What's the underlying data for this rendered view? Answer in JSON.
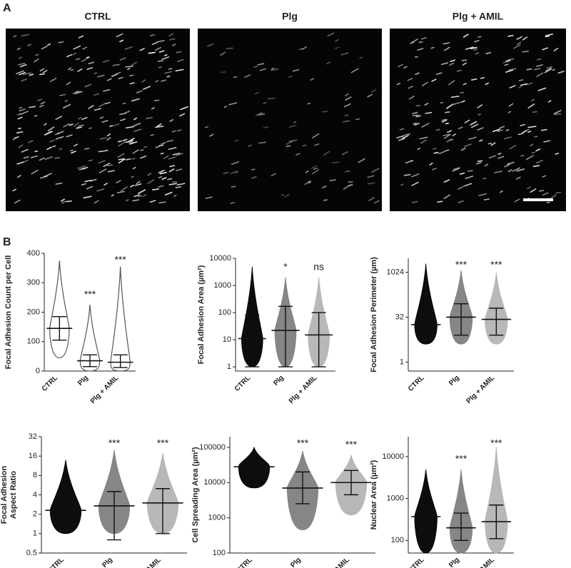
{
  "panel_a": {
    "label": "A",
    "images": [
      {
        "title": "CTRL"
      },
      {
        "title": "Plg"
      },
      {
        "title": "Plg + AMIL"
      }
    ]
  },
  "panel_b": {
    "label": "B",
    "charts": [
      {
        "type": "dot",
        "y_label": [
          "Focal Adhesion Count per Cell"
        ],
        "categories": [
          "CTRL",
          "Plg",
          "Plg + AMIL"
        ],
        "log": false,
        "ylim": [
          0,
          400
        ],
        "yticks": [
          0,
          100,
          200,
          300,
          400
        ],
        "groups": [
          {
            "color": "#555555",
            "mean": 145,
            "err": [
              105,
              185
            ],
            "range": [
              45,
              375
            ],
            "significance": null
          },
          {
            "color": "#555555",
            "mean": 35,
            "err": [
              15,
              55
            ],
            "range": [
              0,
              225
            ],
            "significance": "***"
          },
          {
            "color": "#555555",
            "mean": 30,
            "err": [
              12,
              55
            ],
            "range": [
              0,
              355
            ],
            "significance": "***"
          }
        ]
      },
      {
        "type": "dot",
        "y_label": [
          "Focal Adhesion Area (µm²)"
        ],
        "categories": [
          "CTRL",
          "Plg",
          "Plg + AMIL"
        ],
        "log": true,
        "ylim": [
          0.7,
          10000
        ],
        "yticks": [
          1,
          10,
          100,
          1000,
          10000
        ],
        "groups": [
          {
            "color": "#000000",
            "mean": 11,
            "err": [
              1,
              80
            ],
            "range": [
              1,
              5000
            ],
            "significance": null
          },
          {
            "color": "#808080",
            "mean": 22,
            "err": [
              1,
              170
            ],
            "range": [
              1,
              2000
            ],
            "significance": "*"
          },
          {
            "color": "#b4b4b4",
            "mean": 15,
            "err": [
              1,
              100
            ],
            "range": [
              1,
              2000
            ],
            "significance": "ns"
          }
        ]
      },
      {
        "type": "dot",
        "y_label": [
          "Focal Adhesion Perimeter (µm)"
        ],
        "categories": [
          "CTRL",
          "Plg",
          "Plg + AMIL"
        ],
        "log": true,
        "ylim": [
          0.5,
          3000
        ],
        "yticks": [
          1,
          32,
          1024
        ],
        "groups": [
          {
            "color": "#000000",
            "mean": 18,
            "err": [
              6,
              40
            ],
            "range": [
              4,
              2000
            ],
            "significance": null
          },
          {
            "color": "#808080",
            "mean": 32,
            "err": [
              8,
              90
            ],
            "range": [
              4,
              1200
            ],
            "significance": "***"
          },
          {
            "color": "#b4b4b4",
            "mean": 27,
            "err": [
              8,
              64
            ],
            "range": [
              4,
              1000
            ],
            "significance": "***"
          }
        ]
      },
      {
        "type": "dot",
        "y_label": [
          "Focal Adhesion",
          "Aspect Ratio"
        ],
        "categories": [
          "CTRL",
          "Plg",
          "Plg + AMIL"
        ],
        "log": true,
        "ylim": [
          0.5,
          32
        ],
        "yticks": [
          0.5,
          1,
          2,
          4,
          8,
          16,
          32
        ],
        "groups": [
          {
            "color": "#000000",
            "mean": 2.3,
            "err": [
              1.1,
              2.3
            ],
            "range": [
              1,
              14
            ],
            "significance": null
          },
          {
            "color": "#808080",
            "mean": 2.7,
            "err": [
              0.8,
              4.5
            ],
            "range": [
              1,
              20
            ],
            "significance": "***"
          },
          {
            "color": "#b4b4b4",
            "mean": 3,
            "err": [
              1,
              5
            ],
            "range": [
              1,
              18
            ],
            "significance": "***"
          }
        ]
      },
      {
        "type": "dot",
        "y_label": [
          "Cell Spreading Area  (µm²)"
        ],
        "categories": [
          "CTRL",
          "Plg",
          "Plg + AMIL"
        ],
        "log": true,
        "ylim": [
          100,
          200000
        ],
        "yticks": [
          100,
          1000,
          10000,
          100000
        ],
        "groups": [
          {
            "color": "#000000",
            "mean": 28000,
            "err": [
              18000,
              40000
            ],
            "range": [
              7000,
              100000
            ],
            "significance": null
          },
          {
            "color": "#808080",
            "mean": 7000,
            "err": [
              2500,
              20000
            ],
            "range": [
              450,
              80000
            ],
            "significance": "***"
          },
          {
            "color": "#b4b4b4",
            "mean": 10000,
            "err": [
              4500,
              22000
            ],
            "range": [
              1200,
              60000
            ],
            "significance": "***"
          }
        ]
      },
      {
        "type": "dot",
        "y_label": [
          "Nuclear Area (µm²)"
        ],
        "categories": [
          "CTRL",
          "Plg",
          "Plg + AMIL"
        ],
        "log": true,
        "ylim": [
          50,
          30000
        ],
        "yticks": [
          100,
          1000,
          10000
        ],
        "groups": [
          {
            "color": "#000000",
            "mean": 370,
            "err": [
              200,
              700
            ],
            "range": [
              50,
              5000
            ],
            "significance": null
          },
          {
            "color": "#808080",
            "mean": 200,
            "err": [
              100,
              450
            ],
            "range": [
              50,
              5000
            ],
            "significance": "***"
          },
          {
            "color": "#b4b4b4",
            "mean": 280,
            "err": [
              110,
              700
            ],
            "range": [
              50,
              17000
            ],
            "significance": "***"
          }
        ]
      }
    ]
  }
}
